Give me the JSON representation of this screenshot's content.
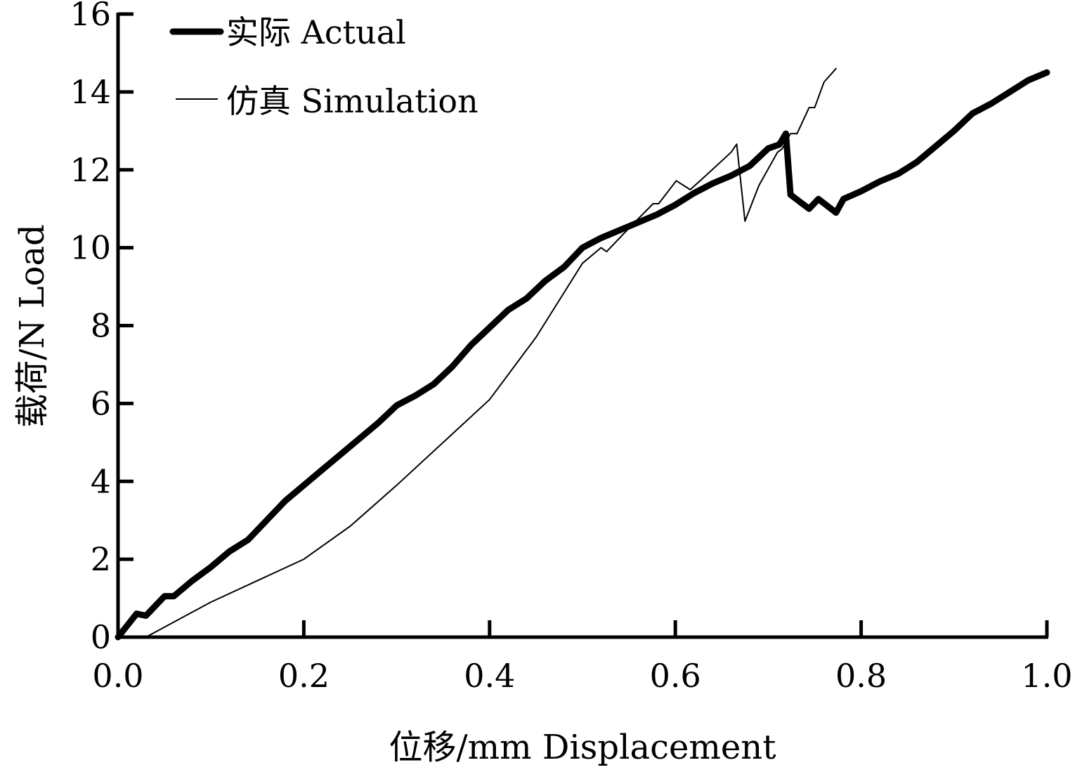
{
  "chart_data": {
    "type": "line",
    "title": "",
    "xlabel": "位移/mm  Displacement",
    "ylabel": "载荷/N  Load",
    "xlim": [
      0,
      1.0
    ],
    "ylim": [
      0,
      16
    ],
    "xticks": [
      "0.0",
      "0.2",
      "0.4",
      "0.6",
      "0.8",
      "1.0"
    ],
    "yticks": [
      "0",
      "2",
      "4",
      "6",
      "8",
      "10",
      "12",
      "14",
      "16"
    ],
    "grid": false,
    "legend_position": "top-left",
    "series": [
      {
        "name": "实际 Actual",
        "style": "thick",
        "color": "#000000",
        "x": [
          0,
          0.02,
          0.03,
          0.05,
          0.06,
          0.08,
          0.1,
          0.12,
          0.14,
          0.16,
          0.18,
          0.2,
          0.22,
          0.24,
          0.26,
          0.28,
          0.3,
          0.32,
          0.34,
          0.36,
          0.38,
          0.4,
          0.42,
          0.44,
          0.46,
          0.48,
          0.5,
          0.52,
          0.54,
          0.56,
          0.58,
          0.6,
          0.62,
          0.64,
          0.66,
          0.68,
          0.7,
          0.712,
          0.719,
          0.724,
          0.744,
          0.754,
          0.773,
          0.781,
          0.8,
          0.82,
          0.84,
          0.86,
          0.88,
          0.9,
          0.92,
          0.94,
          0.96,
          0.98,
          1.0
        ],
        "y": [
          0,
          0.6,
          0.55,
          1.05,
          1.05,
          1.45,
          1.8,
          2.2,
          2.5,
          3.0,
          3.5,
          3.9,
          4.3,
          4.7,
          5.1,
          5.5,
          5.95,
          6.2,
          6.5,
          6.95,
          7.5,
          7.95,
          8.4,
          8.7,
          9.15,
          9.5,
          10.0,
          10.25,
          10.45,
          10.65,
          10.85,
          11.1,
          11.4,
          11.65,
          11.85,
          12.1,
          12.55,
          12.65,
          12.93,
          11.36,
          11.0,
          11.25,
          10.9,
          11.25,
          11.45,
          11.7,
          11.9,
          12.2,
          12.6,
          13.0,
          13.45,
          13.7,
          14.0,
          14.3,
          14.5
        ]
      },
      {
        "name": "仿真 Simulation",
        "style": "thin",
        "color": "#000000",
        "x": [
          0.03,
          0.1,
          0.2,
          0.25,
          0.3,
          0.35,
          0.4,
          0.45,
          0.5,
          0.52,
          0.526,
          0.55,
          0.576,
          0.582,
          0.601,
          0.616,
          0.635,
          0.66,
          0.666,
          0.675,
          0.69,
          0.71,
          0.715,
          0.724,
          0.731,
          0.744,
          0.75,
          0.76,
          0.773
        ],
        "y": [
          0,
          0.9,
          2.0,
          2.85,
          3.9,
          5.0,
          6.1,
          7.7,
          9.6,
          10.0,
          9.9,
          10.5,
          11.13,
          11.13,
          11.72,
          11.49,
          11.9,
          12.45,
          12.66,
          10.68,
          11.6,
          12.45,
          12.54,
          12.93,
          12.93,
          13.6,
          13.6,
          14.25,
          14.6
        ]
      }
    ]
  }
}
